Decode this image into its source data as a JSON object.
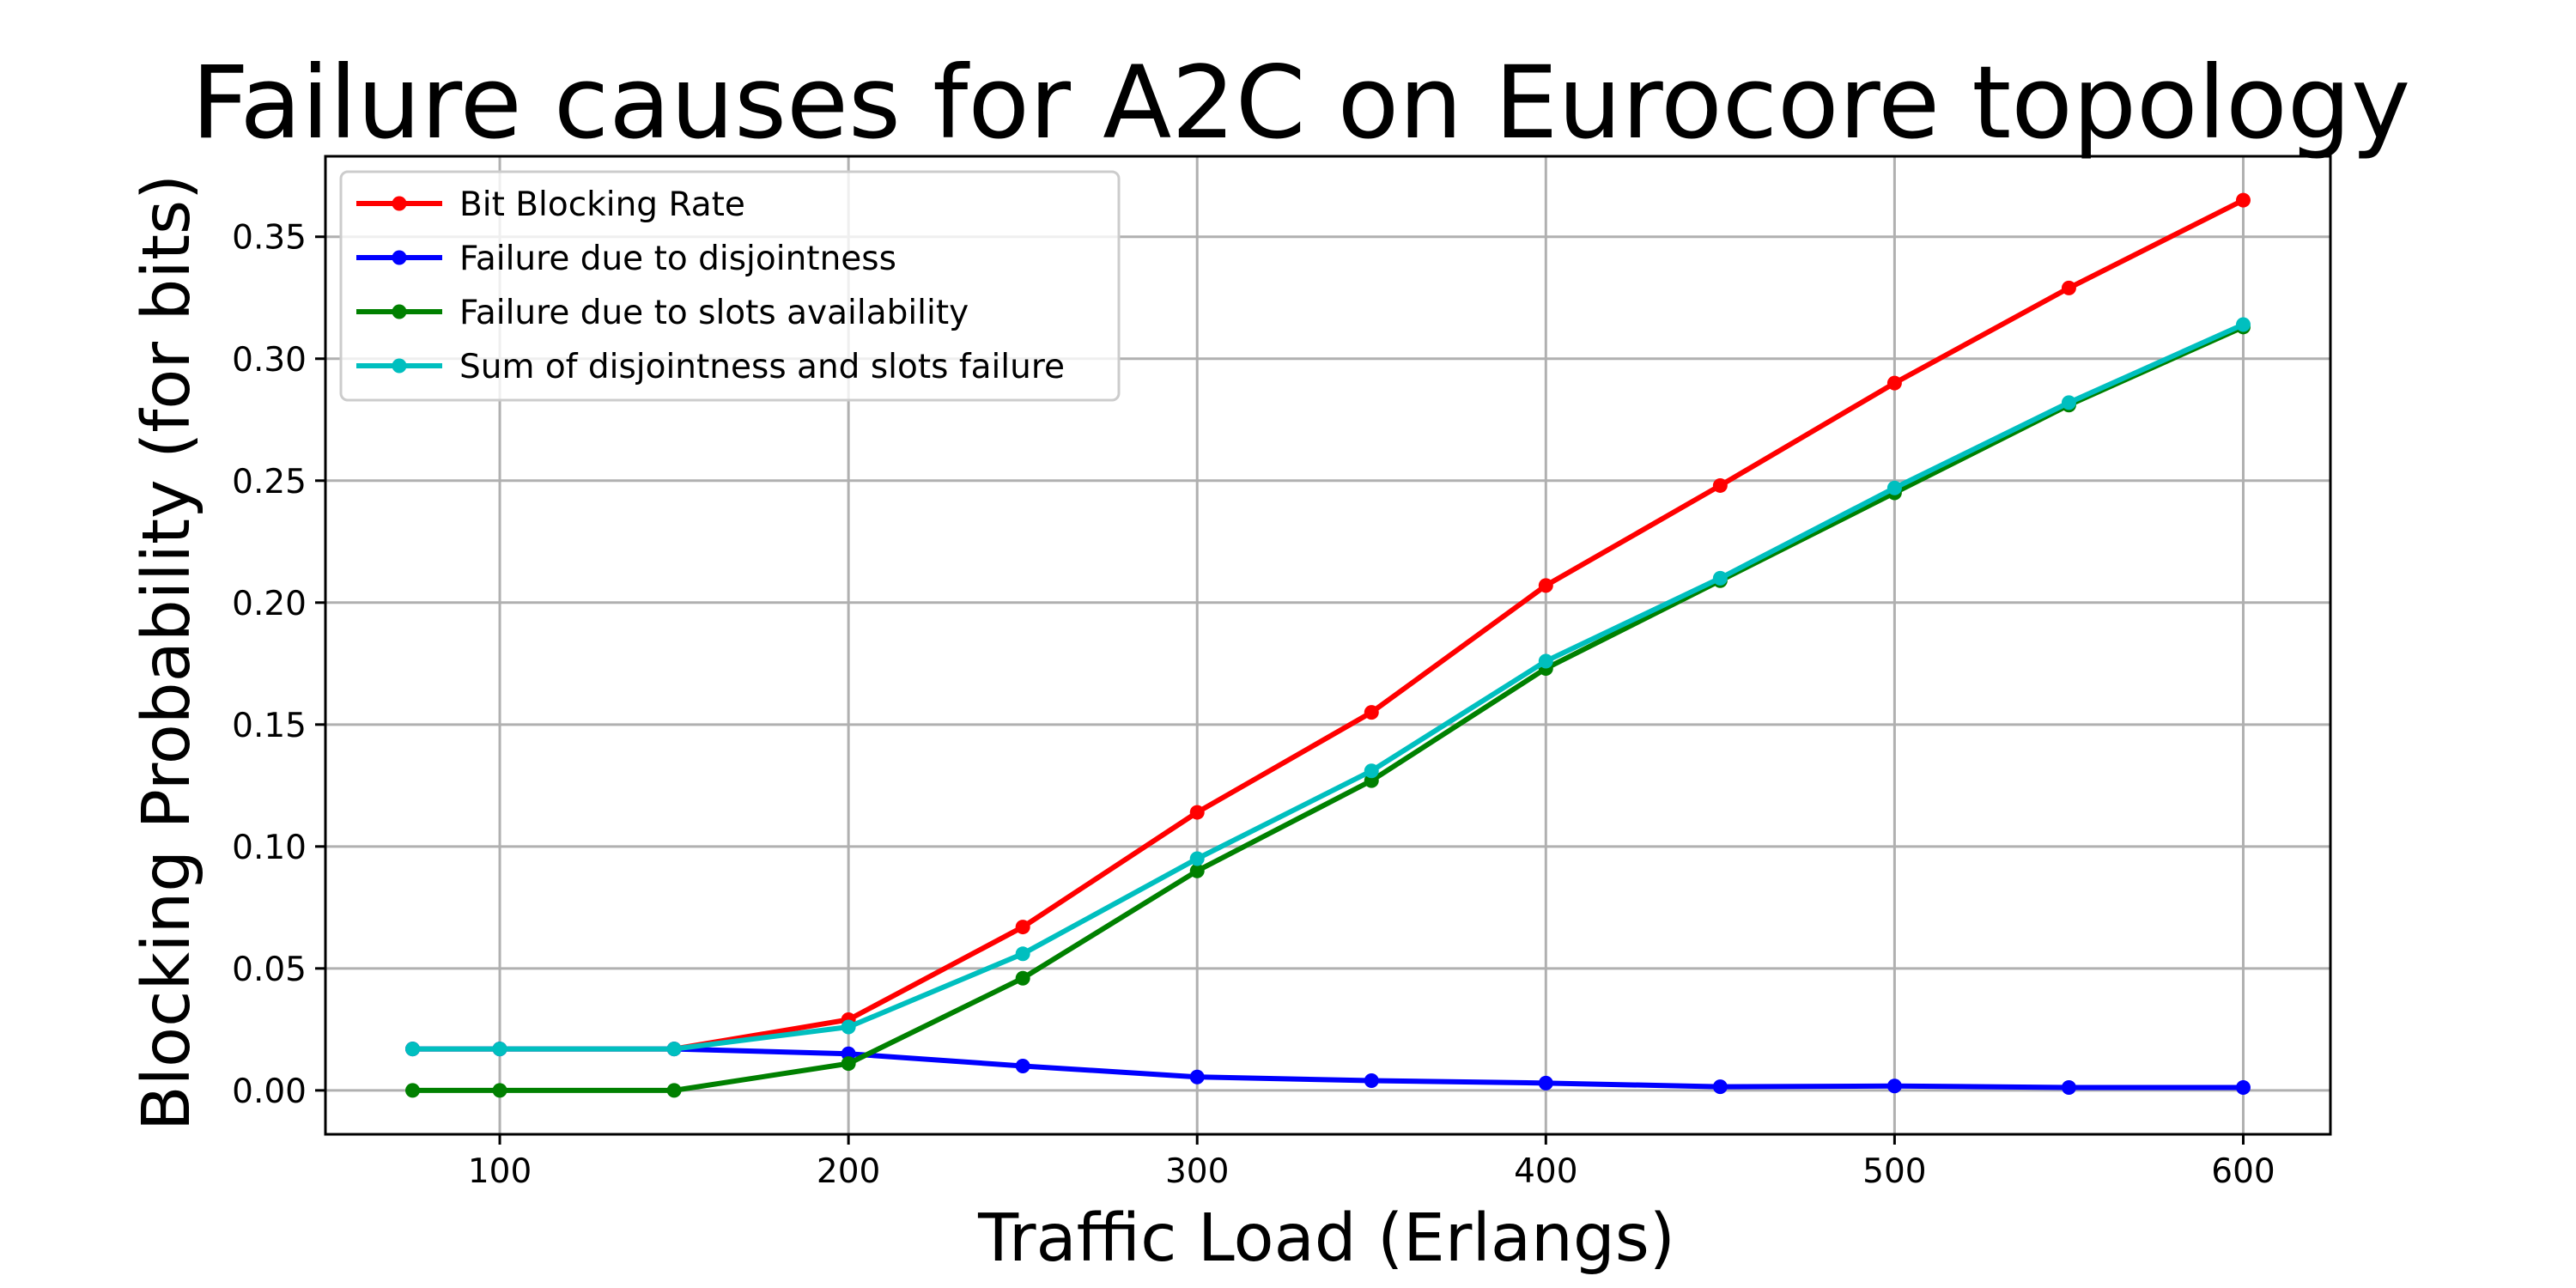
{
  "chart_data": {
    "type": "line",
    "title": "Failure causes for A2C on Eurocore topology",
    "xlabel": "Traffic Load (Erlangs)",
    "ylabel": "Blocking Probability (for bits)",
    "xlim": [
      50,
      625
    ],
    "ylim": [
      -0.018,
      0.383
    ],
    "xticks": [
      100,
      200,
      300,
      400,
      500,
      600
    ],
    "xtick_labels": [
      "100",
      "200",
      "300",
      "400",
      "500",
      "600"
    ],
    "yticks": [
      0.0,
      0.05,
      0.1,
      0.15,
      0.2,
      0.25,
      0.3,
      0.35
    ],
    "ytick_labels": [
      "0.00",
      "0.05",
      "0.10",
      "0.15",
      "0.20",
      "0.25",
      "0.30",
      "0.35"
    ],
    "grid": true,
    "legend_position": "top-left",
    "x": [
      75,
      100,
      150,
      200,
      250,
      300,
      350,
      400,
      450,
      500,
      550,
      600
    ],
    "series": [
      {
        "name": "Bit Blocking Rate",
        "color": "#ff0000",
        "values": [
          0.017,
          0.017,
          0.017,
          0.029,
          0.067,
          0.114,
          0.155,
          0.207,
          0.248,
          0.29,
          0.329,
          0.365
        ]
      },
      {
        "name": "Failure due to disjointness",
        "color": "#0000ff",
        "values": [
          0.017,
          0.017,
          0.017,
          0.015,
          0.01,
          0.0055,
          0.004,
          0.003,
          0.0015,
          0.0018,
          0.0012,
          0.0012
        ]
      },
      {
        "name": "Failure due to slots availability",
        "color": "#008000",
        "values": [
          0.0,
          0.0,
          0.0,
          0.011,
          0.046,
          0.09,
          0.127,
          0.173,
          0.209,
          0.245,
          0.281,
          0.313
        ]
      },
      {
        "name": "Sum of disjointness and slots failure",
        "color": "#00bfbf",
        "values": [
          0.017,
          0.017,
          0.017,
          0.026,
          0.056,
          0.095,
          0.131,
          0.176,
          0.21,
          0.247,
          0.282,
          0.314
        ]
      }
    ]
  }
}
